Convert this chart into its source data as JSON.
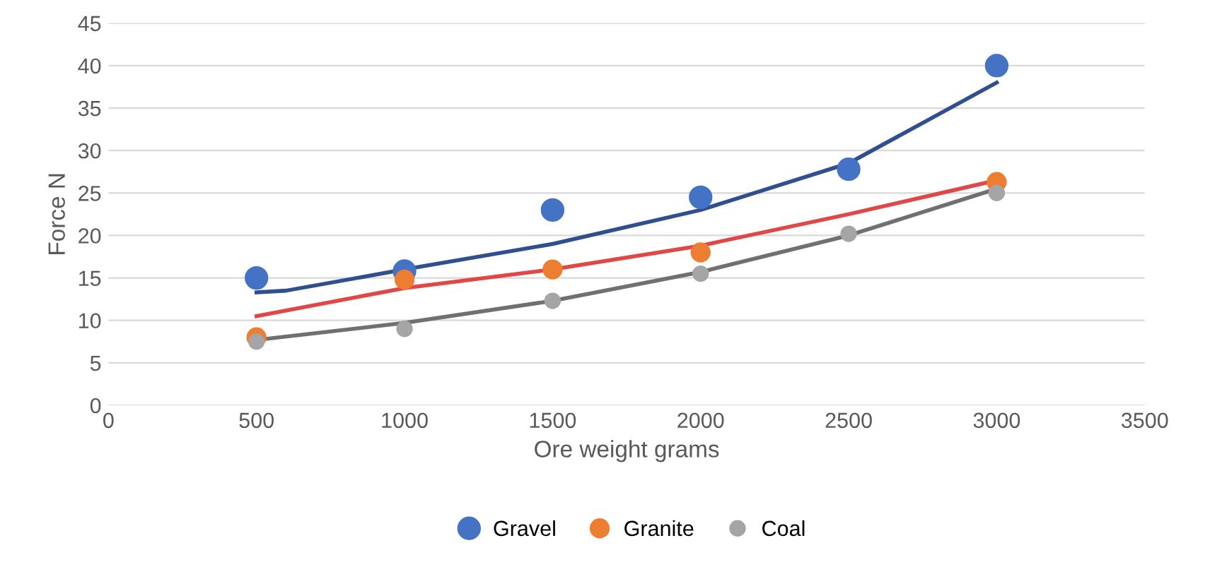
{
  "chart_data": {
    "type": "scatter",
    "xlabel": "Ore weight grams",
    "ylabel": "Force N",
    "xlim": [
      0,
      3500
    ],
    "xticks": [
      0,
      500,
      1000,
      1500,
      2000,
      2500,
      3000,
      3500
    ],
    "ylim": [
      0,
      45
    ],
    "yticks": [
      0,
      5,
      10,
      15,
      20,
      25,
      30,
      35,
      40,
      45
    ],
    "grid": "y",
    "legend": "bottom",
    "marker": "circle",
    "series": [
      {
        "name": "Gravel",
        "color": "#4472c4",
        "x": [
          500,
          1000,
          1500,
          2000,
          2500,
          3000
        ],
        "values": [
          15,
          15.8,
          23,
          24.5,
          27.8,
          40
        ]
      },
      {
        "name": "Granite",
        "color": "#ed7d31",
        "x": [
          500,
          1000,
          1500,
          2000,
          2500,
          3000
        ],
        "values": [
          8,
          14.8,
          16,
          18,
          null,
          26.3
        ]
      },
      {
        "name": "Coal",
        "color": "#a5a5a5",
        "x": [
          500,
          1000,
          1500,
          2000,
          2500,
          3000
        ],
        "values": [
          7.5,
          9,
          12.3,
          15.5,
          20.2,
          25
        ]
      },
      {
        "type": "line",
        "marker": "none",
        "color": "#2f4f8f",
        "x": [
          500,
          600,
          1000,
          1500,
          2000,
          2500,
          3000
        ],
        "values": [
          13.3,
          13.5,
          16,
          19,
          23,
          28.5,
          38
        ]
      },
      {
        "type": "line",
        "marker": "none",
        "color": "#e04848",
        "x": [
          500,
          1000,
          1500,
          2000,
          2500,
          3000
        ],
        "values": [
          10.5,
          13.8,
          16,
          18.8,
          22.5,
          26.5
        ]
      },
      {
        "type": "line",
        "marker": "none",
        "color": "#707070",
        "x": [
          500,
          1000,
          1500,
          2000,
          2500,
          3000
        ],
        "values": [
          7.7,
          9.7,
          12.3,
          15.7,
          20,
          25.5
        ]
      }
    ]
  }
}
